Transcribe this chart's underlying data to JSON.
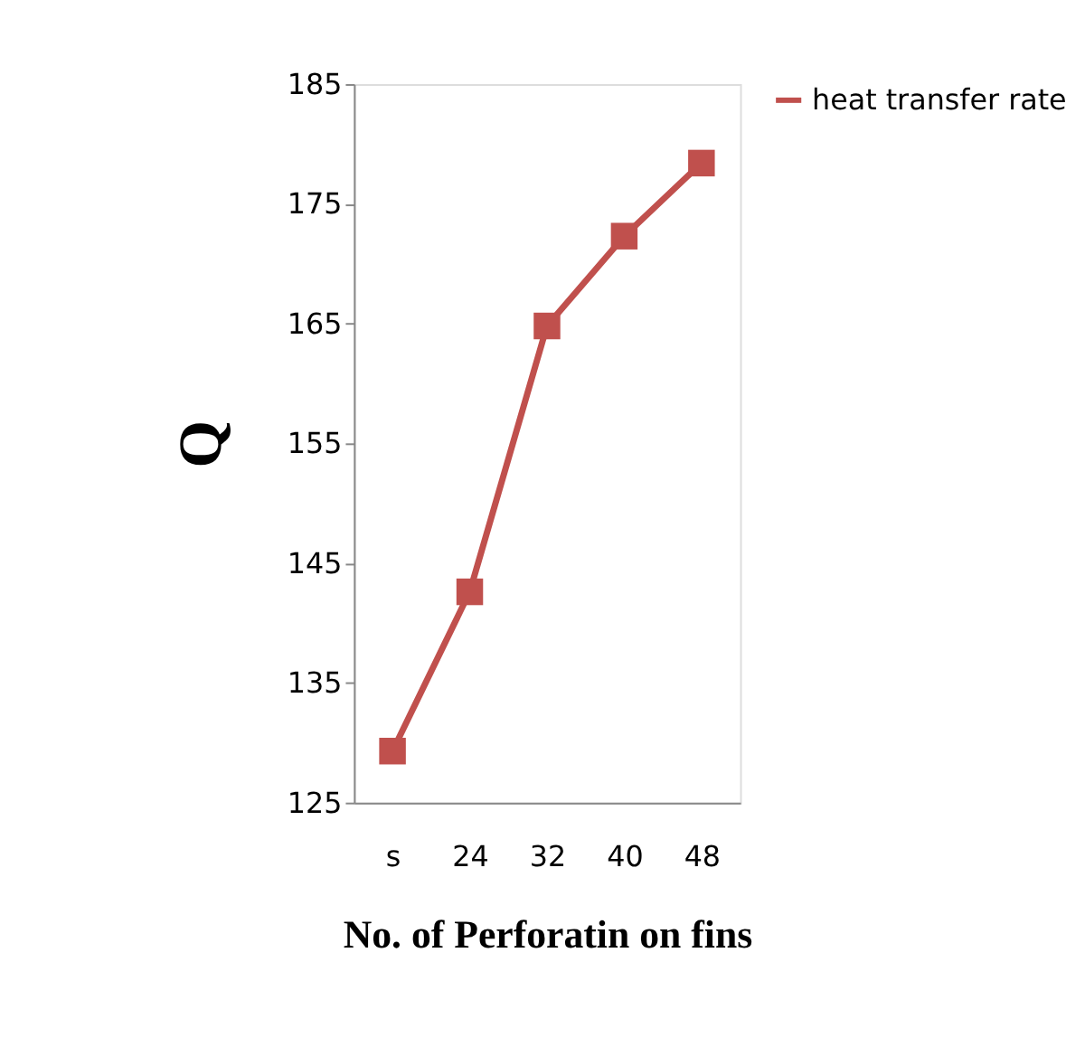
{
  "chart_data": {
    "type": "line",
    "xlabel": "No. of Perforatin on fins",
    "ylabel": "Q",
    "categories": [
      "s",
      "24",
      "32",
      "40",
      "48"
    ],
    "series": [
      {
        "name": "heat transfer rate",
        "color": "#c0504d",
        "values": [
          129.3,
          142.6,
          164.8,
          172.3,
          178.4
        ]
      }
    ],
    "ylim": [
      125,
      185
    ],
    "yticks": [
      125,
      135,
      145,
      155,
      165,
      175,
      185
    ],
    "grid": false,
    "legend": "right",
    "marker": "square",
    "line_style": "solid"
  }
}
